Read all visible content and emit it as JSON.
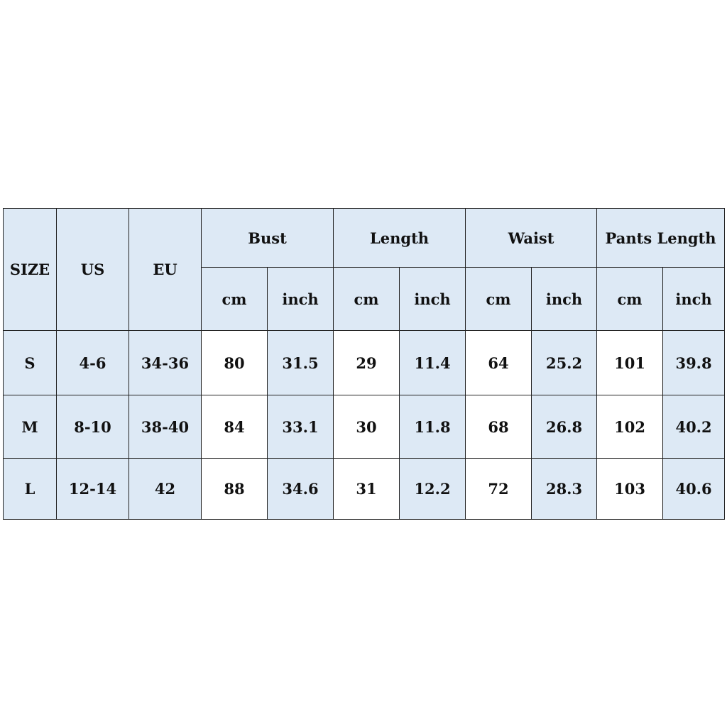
{
  "headers": {
    "size": "SIZE",
    "us": "US",
    "eu": "EU",
    "groups": [
      "Bust",
      "Length",
      "Waist",
      "Pants Length"
    ],
    "units": [
      "cm",
      "inch"
    ]
  },
  "rows": [
    {
      "size": "S",
      "us": "4-6",
      "eu": "34-36",
      "values": [
        "80",
        "31.5",
        "29",
        "11.4",
        "64",
        "25.2",
        "101",
        "39.8"
      ]
    },
    {
      "size": "M",
      "us": "8-10",
      "eu": "38-40",
      "values": [
        "84",
        "33.1",
        "30",
        "11.8",
        "68",
        "26.8",
        "102",
        "40.2"
      ]
    },
    {
      "size": "L",
      "us": "12-14",
      "eu": "42",
      "values": [
        "88",
        "34.6",
        "31",
        "12.2",
        "72",
        "28.3",
        "103",
        "40.6"
      ]
    }
  ],
  "colors": {
    "header_fill": "#dde9f5",
    "cm_fill": "#ffffff",
    "border": "#222222"
  }
}
